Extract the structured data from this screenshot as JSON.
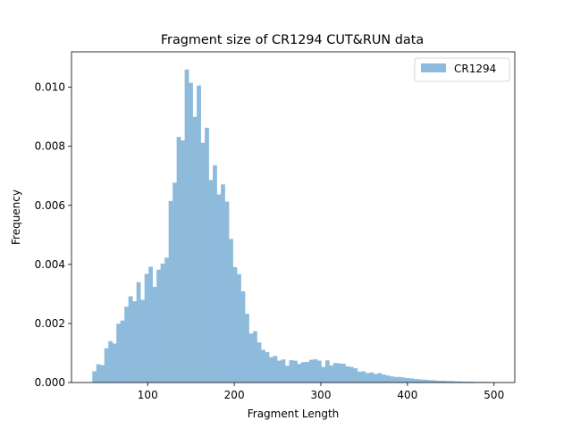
{
  "chart_data": {
    "type": "bar",
    "title": "Fragment size of CR1294 CUT&RUN data",
    "xlabel": "Fragment Length",
    "ylabel": "Frequency",
    "xlim": [
      12,
      524
    ],
    "ylim": [
      0,
      0.0112
    ],
    "x_ticks": [
      100,
      200,
      300,
      400,
      500
    ],
    "x_tick_labels": [
      "100",
      "200",
      "300",
      "400",
      "500"
    ],
    "y_ticks": [
      0,
      0.002,
      0.004,
      0.006,
      0.008,
      0.01
    ],
    "y_tick_labels": [
      "0.000",
      "0.002",
      "0.004",
      "0.006",
      "0.008",
      "0.010"
    ],
    "bin_start": 36,
    "bin_width": 4.64,
    "series": [
      {
        "name": "CR1294",
        "color": "#8ebbdb",
        "values": [
          0.00038,
          0.00062,
          0.00059,
          0.00116,
          0.0014,
          0.00132,
          0.00199,
          0.0021,
          0.00257,
          0.00292,
          0.00275,
          0.0034,
          0.0028,
          0.00368,
          0.00392,
          0.00324,
          0.00382,
          0.00403,
          0.00423,
          0.00615,
          0.00677,
          0.00832,
          0.0082,
          0.0106,
          0.01015,
          0.009,
          0.01006,
          0.00812,
          0.00863,
          0.00686,
          0.00736,
          0.00637,
          0.00671,
          0.00613,
          0.00486,
          0.00391,
          0.00367,
          0.00309,
          0.00233,
          0.00166,
          0.00174,
          0.00136,
          0.00111,
          0.00103,
          0.00086,
          0.0009,
          0.00074,
          0.00078,
          0.00057,
          0.00076,
          0.00074,
          0.00063,
          0.00069,
          0.0007,
          0.00077,
          0.00079,
          0.00074,
          0.00053,
          0.00075,
          0.00058,
          0.00066,
          0.00065,
          0.00064,
          0.00055,
          0.00053,
          0.00048,
          0.00037,
          0.00038,
          0.00032,
          0.00034,
          0.00029,
          0.00032,
          0.00027,
          0.00024,
          0.00021,
          0.00019,
          0.00019,
          0.00017,
          0.00015,
          0.00014,
          0.00012,
          0.00011,
          0.0001,
          9e-05,
          8e-05,
          7e-05,
          6e-05,
          6e-05,
          5e-05,
          5e-05,
          4e-05,
          4e-05,
          3e-05,
          3e-05,
          3e-05,
          2e-05,
          2e-05,
          2e-05,
          2e-05,
          1e-05
        ]
      }
    ],
    "legend": {
      "position": "top-right",
      "label": "CR1294"
    },
    "grid": false
  }
}
